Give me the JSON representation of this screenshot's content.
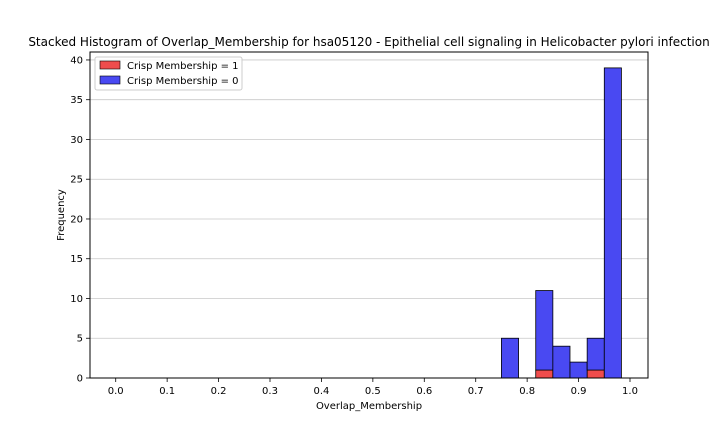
{
  "chart_data": {
    "type": "bar",
    "title": "Stacked Histogram of Overlap_Membership for hsa05120 - Epithelial cell signaling in Helicobacter pylori infection",
    "xlabel": "Overlap_Membership",
    "ylabel": "Frequency",
    "xlim": [
      -0.05,
      1.035
    ],
    "ylim": [
      0,
      41
    ],
    "xticks": [
      "0.0",
      "0.1",
      "0.2",
      "0.3",
      "0.4",
      "0.5",
      "0.6",
      "0.7",
      "0.8",
      "0.9",
      "1.0"
    ],
    "yticks": [
      "0",
      "5",
      "10",
      "15",
      "20",
      "25",
      "30",
      "35",
      "40"
    ],
    "grid": "y",
    "legend_position": "top-left",
    "bin_width": 0.0333,
    "bins": [
      0.75,
      0.8167,
      0.85,
      0.8833,
      0.9167,
      0.95
    ],
    "series": [
      {
        "name": "Crisp Membership = 1",
        "color": "#ef4c4c",
        "values": [
          0,
          1,
          0,
          0,
          1,
          0
        ]
      },
      {
        "name": "Crisp Membership = 0",
        "color": "#4949f2",
        "values": [
          5,
          10,
          4,
          2,
          4,
          39
        ]
      }
    ]
  }
}
